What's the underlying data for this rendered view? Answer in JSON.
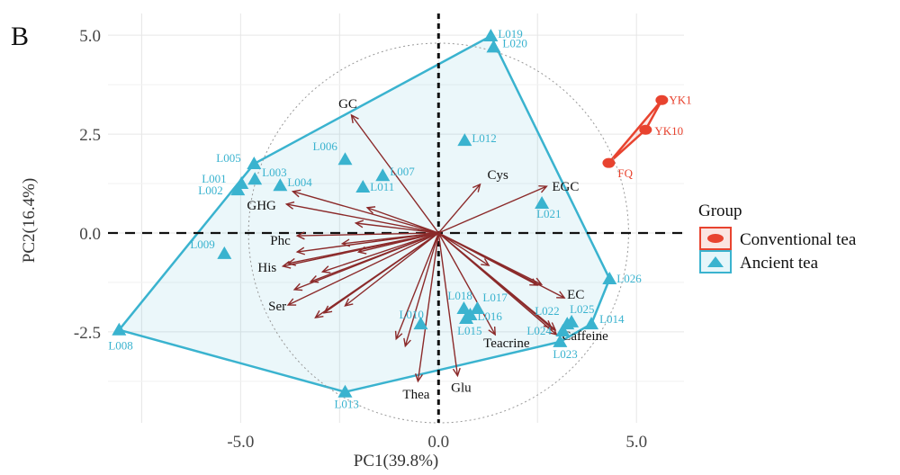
{
  "panel_label": "B",
  "chart_data": {
    "type": "scatter",
    "subtype": "pca-biplot",
    "xlabel": "PC1(39.8%)",
    "ylabel": "PC2(16.4%)",
    "xlim": [
      -8.35,
      6.2
    ],
    "ylim": [
      -4.8,
      5.55
    ],
    "x_ticks": [
      {
        "v": -5,
        "label": "-5.0"
      },
      {
        "v": 0,
        "label": "0.0"
      },
      {
        "v": 5,
        "label": "5.0"
      }
    ],
    "y_ticks": [
      {
        "v": -2.5,
        "label": "-2.5"
      },
      {
        "v": 0,
        "label": "0.0"
      },
      {
        "v": 2.5,
        "label": "2.5"
      },
      {
        "v": 5,
        "label": "5.0"
      }
    ],
    "grid": true,
    "correlation_circle_radius": 4.8,
    "legend": {
      "title": "Group",
      "placement": "right",
      "entries": [
        {
          "label": "Conventional tea",
          "color": "#e8432f",
          "marker": "circle"
        },
        {
          "label": "Ancient tea",
          "color": "#3ab3cf",
          "marker": "triangle"
        }
      ]
    },
    "series": [
      {
        "name": "Conventional tea",
        "color": "#e8432f",
        "marker": "circle",
        "points": [
          {
            "label": "YK1",
            "x": 5.64,
            "y": 3.36
          },
          {
            "label": "YK10",
            "x": 5.23,
            "y": 2.61
          },
          {
            "label": "FQ",
            "x": 4.3,
            "y": 1.77
          }
        ]
      },
      {
        "name": "Ancient tea",
        "color": "#3ab3cf",
        "marker": "triangle",
        "points": [
          {
            "label": "L019",
            "x": 1.32,
            "y": 4.98
          },
          {
            "label": "L020",
            "x": 1.39,
            "y": 4.7
          },
          {
            "label": "L012",
            "x": 0.66,
            "y": 2.34
          },
          {
            "label": "L021",
            "x": 2.61,
            "y": 0.75
          },
          {
            "label": "L026",
            "x": 4.32,
            "y": -1.16
          },
          {
            "label": "L014",
            "x": 3.86,
            "y": -2.3
          },
          {
            "label": "L025",
            "x": 3.36,
            "y": -2.25
          },
          {
            "label": "L022",
            "x": 3.25,
            "y": -2.3
          },
          {
            "label": "L024",
            "x": 3.14,
            "y": -2.48
          },
          {
            "label": "L023",
            "x": 3.07,
            "y": -2.75
          },
          {
            "label": "L017",
            "x": 0.98,
            "y": -1.91
          },
          {
            "label": "L018",
            "x": 0.64,
            "y": -1.91
          },
          {
            "label": "L016",
            "x": 0.8,
            "y": -2.07
          },
          {
            "label": "L015",
            "x": 0.7,
            "y": -2.16
          },
          {
            "label": "L010",
            "x": -0.45,
            "y": -2.3
          },
          {
            "label": "L013",
            "x": -2.36,
            "y": -4.02
          },
          {
            "label": "L008",
            "x": -8.07,
            "y": -2.45
          },
          {
            "label": "L009",
            "x": -5.41,
            "y": -0.52
          },
          {
            "label": "L002",
            "x": -5.07,
            "y": 1.09
          },
          {
            "label": "L001",
            "x": -4.98,
            "y": 1.25
          },
          {
            "label": "L005",
            "x": -4.66,
            "y": 1.75
          },
          {
            "label": "L003",
            "x": -4.64,
            "y": 1.36
          },
          {
            "label": "L004",
            "x": -4.0,
            "y": 1.2
          },
          {
            "label": "L006",
            "x": -2.36,
            "y": 1.86
          },
          {
            "label": "L007",
            "x": -1.41,
            "y": 1.45
          },
          {
            "label": "L011",
            "x": -1.91,
            "y": 1.16
          }
        ]
      }
    ],
    "loadings_color": "#8b2a2a",
    "loadings": [
      {
        "label": "GC",
        "x": -2.2,
        "y": 2.98
      },
      {
        "label": "Cys",
        "x": 1.05,
        "y": 1.23
      },
      {
        "label": "EGC",
        "x": 2.73,
        "y": 1.18
      },
      {
        "label": "EC",
        "x": 3.18,
        "y": -1.64
      },
      {
        "label": "Caffeine",
        "x": 2.98,
        "y": -2.57
      },
      {
        "label": "Teacrine",
        "x": 1.43,
        "y": -2.57
      },
      {
        "label": "Glu",
        "x": 0.48,
        "y": -3.61
      },
      {
        "label": "Thea",
        "x": -0.52,
        "y": -3.75
      },
      {
        "label": "Ser",
        "x": -3.8,
        "y": -1.82
      },
      {
        "label": "His",
        "x": -3.93,
        "y": -0.84
      },
      {
        "label": "Phc",
        "x": -3.57,
        "y": -0.07
      },
      {
        "label": "GHG",
        "x": -3.84,
        "y": 0.73
      },
      {
        "label": "",
        "x": -3.68,
        "y": 1.05
      },
      {
        "label": "",
        "x": -1.8,
        "y": 0.64
      },
      {
        "label": "",
        "x": -2.09,
        "y": 0.25
      },
      {
        "label": "",
        "x": -2.43,
        "y": -0.27
      },
      {
        "label": "",
        "x": -2.02,
        "y": -0.48
      },
      {
        "label": "",
        "x": -3.57,
        "y": -0.48
      },
      {
        "label": "",
        "x": -3.8,
        "y": -0.77
      },
      {
        "label": "",
        "x": -2.93,
        "y": -0.98
      },
      {
        "label": "",
        "x": -3.23,
        "y": -1.23
      },
      {
        "label": "",
        "x": -3.64,
        "y": -1.43
      },
      {
        "label": "",
        "x": -3.11,
        "y": -2.14
      },
      {
        "label": "",
        "x": -2.89,
        "y": -2.02
      },
      {
        "label": "",
        "x": -2.36,
        "y": -1.84
      },
      {
        "label": "",
        "x": -1.07,
        "y": -2.68
      },
      {
        "label": "",
        "x": -0.84,
        "y": -2.86
      },
      {
        "label": "",
        "x": 1.27,
        "y": -0.82
      },
      {
        "label": "",
        "x": 2.5,
        "y": -1.32
      },
      {
        "label": "",
        "x": 2.6,
        "y": -1.3
      },
      {
        "label": "",
        "x": 2.95,
        "y": -2.45
      },
      {
        "label": "",
        "x": 2.85,
        "y": -2.4
      }
    ]
  }
}
